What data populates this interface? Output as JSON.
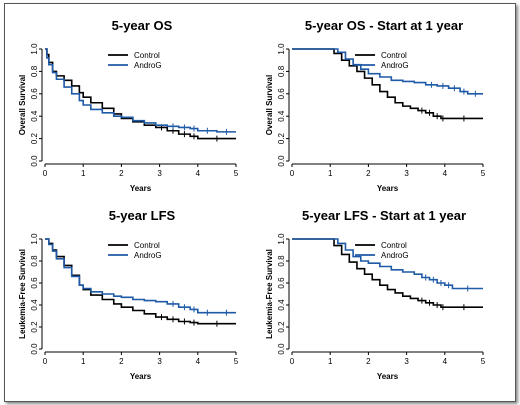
{
  "chart_data": [
    {
      "type": "line",
      "title": "5-year OS",
      "xlabel": "Years",
      "ylabel": "Overall Survival",
      "xlim": [
        0,
        5
      ],
      "ylim": [
        0,
        1
      ],
      "xticks": [
        "0",
        "1",
        "2",
        "3",
        "4",
        "5"
      ],
      "yticks": [
        "0.0",
        "0.2",
        "0.4",
        "0.6",
        "0.8",
        "1.0"
      ],
      "legend": "top-center",
      "series": [
        {
          "name": "Control",
          "color": "#000000",
          "x": [
            0,
            0.05,
            0.1,
            0.2,
            0.3,
            0.5,
            0.7,
            0.9,
            1.0,
            1.2,
            1.5,
            1.8,
            2.0,
            2.3,
            2.6,
            2.9,
            3.2,
            3.5,
            3.8,
            4.0,
            5.0
          ],
          "y": [
            1.0,
            0.95,
            0.88,
            0.8,
            0.76,
            0.72,
            0.67,
            0.61,
            0.57,
            0.52,
            0.47,
            0.42,
            0.38,
            0.35,
            0.32,
            0.3,
            0.27,
            0.24,
            0.22,
            0.2,
            0.2
          ]
        },
        {
          "name": "AndroG",
          "color": "#1f5aa6",
          "x": [
            0,
            0.05,
            0.1,
            0.2,
            0.3,
            0.5,
            0.7,
            0.9,
            1.0,
            1.2,
            1.5,
            1.8,
            2.0,
            2.3,
            2.6,
            2.9,
            3.2,
            3.5,
            3.8,
            4.0,
            4.5,
            5.0
          ],
          "y": [
            1.0,
            0.92,
            0.86,
            0.79,
            0.73,
            0.66,
            0.6,
            0.54,
            0.5,
            0.46,
            0.43,
            0.4,
            0.39,
            0.36,
            0.34,
            0.32,
            0.31,
            0.3,
            0.29,
            0.27,
            0.26,
            0.26
          ]
        }
      ]
    },
    {
      "type": "line",
      "title": "5-year OS - Start at 1 year",
      "xlabel": "Years",
      "ylabel": "Overall Survival",
      "xlim": [
        0,
        5
      ],
      "ylim": [
        0,
        1
      ],
      "xticks": [
        "0",
        "1",
        "2",
        "3",
        "4",
        "5"
      ],
      "yticks": [
        "0.0",
        "0.2",
        "0.4",
        "0.6",
        "0.8",
        "1.0"
      ],
      "legend": "top-center",
      "series": [
        {
          "name": "Control",
          "color": "#000000",
          "x": [
            0,
            1.0,
            1.1,
            1.3,
            1.5,
            1.7,
            1.9,
            2.1,
            2.3,
            2.5,
            2.7,
            2.9,
            3.1,
            3.3,
            3.5,
            3.7,
            3.9,
            4.0,
            5.0
          ],
          "y": [
            1.0,
            1.0,
            0.96,
            0.9,
            0.85,
            0.8,
            0.74,
            0.68,
            0.62,
            0.57,
            0.52,
            0.49,
            0.47,
            0.45,
            0.43,
            0.4,
            0.38,
            0.38,
            0.38
          ]
        },
        {
          "name": "AndroG",
          "color": "#1f5aa6",
          "x": [
            0,
            1.0,
            1.2,
            1.4,
            1.6,
            1.8,
            2.0,
            2.3,
            2.6,
            2.9,
            3.2,
            3.5,
            3.8,
            4.1,
            4.4,
            4.6,
            5.0
          ],
          "y": [
            1.0,
            1.0,
            0.97,
            0.91,
            0.86,
            0.82,
            0.78,
            0.75,
            0.72,
            0.71,
            0.7,
            0.68,
            0.67,
            0.65,
            0.62,
            0.6,
            0.6
          ]
        }
      ]
    },
    {
      "type": "line",
      "title": "5-year LFS",
      "xlabel": "Years",
      "ylabel": "Leukemia-Free Survival",
      "xlim": [
        0,
        5
      ],
      "ylim": [
        0,
        1
      ],
      "xticks": [
        "0",
        "1",
        "2",
        "3",
        "4",
        "5"
      ],
      "yticks": [
        "0.0",
        "0.2",
        "0.4",
        "0.6",
        "0.8",
        "1.0"
      ],
      "legend": "top-center",
      "series": [
        {
          "name": "Control",
          "color": "#000000",
          "x": [
            0,
            0.1,
            0.2,
            0.3,
            0.5,
            0.7,
            0.9,
            1.0,
            1.2,
            1.5,
            1.8,
            2.0,
            2.3,
            2.6,
            2.9,
            3.2,
            3.5,
            3.8,
            4.0,
            5.0
          ],
          "y": [
            1.0,
            0.96,
            0.9,
            0.84,
            0.76,
            0.67,
            0.58,
            0.54,
            0.49,
            0.45,
            0.41,
            0.38,
            0.35,
            0.32,
            0.29,
            0.27,
            0.25,
            0.24,
            0.23,
            0.23
          ]
        },
        {
          "name": "AndroG",
          "color": "#1f5aa6",
          "x": [
            0,
            0.1,
            0.2,
            0.3,
            0.5,
            0.7,
            0.9,
            1.0,
            1.2,
            1.5,
            1.8,
            2.0,
            2.3,
            2.6,
            2.9,
            3.2,
            3.5,
            3.8,
            4.0,
            4.5,
            5.0
          ],
          "y": [
            1.0,
            0.95,
            0.89,
            0.82,
            0.74,
            0.66,
            0.58,
            0.55,
            0.52,
            0.5,
            0.48,
            0.47,
            0.45,
            0.44,
            0.43,
            0.41,
            0.38,
            0.36,
            0.33,
            0.33,
            0.33
          ]
        }
      ]
    },
    {
      "type": "line",
      "title": "5-year LFS - Start at 1 year",
      "xlabel": "Years",
      "ylabel": "Leukemia-Free Survival",
      "xlim": [
        0,
        5
      ],
      "ylim": [
        0,
        1
      ],
      "xticks": [
        "0",
        "1",
        "2",
        "3",
        "4",
        "5"
      ],
      "yticks": [
        "0.0",
        "0.2",
        "0.4",
        "0.6",
        "0.8",
        "1.0"
      ],
      "legend": "top-center",
      "series": [
        {
          "name": "Control",
          "color": "#000000",
          "x": [
            0,
            1.0,
            1.1,
            1.3,
            1.5,
            1.7,
            1.9,
            2.1,
            2.3,
            2.5,
            2.7,
            2.9,
            3.1,
            3.3,
            3.5,
            3.7,
            3.9,
            4.0,
            5.0
          ],
          "y": [
            1.0,
            1.0,
            0.94,
            0.86,
            0.79,
            0.73,
            0.68,
            0.63,
            0.58,
            0.54,
            0.51,
            0.48,
            0.46,
            0.44,
            0.42,
            0.4,
            0.38,
            0.38,
            0.38
          ]
        },
        {
          "name": "AndroG",
          "color": "#1f5aa6",
          "x": [
            0,
            1.0,
            1.2,
            1.4,
            1.6,
            1.8,
            2.0,
            2.3,
            2.6,
            2.9,
            3.2,
            3.4,
            3.6,
            3.8,
            4.0,
            4.2,
            5.0
          ],
          "y": [
            1.0,
            1.0,
            0.96,
            0.9,
            0.84,
            0.8,
            0.78,
            0.75,
            0.72,
            0.7,
            0.68,
            0.65,
            0.63,
            0.6,
            0.58,
            0.55,
            0.55
          ]
        }
      ]
    }
  ]
}
